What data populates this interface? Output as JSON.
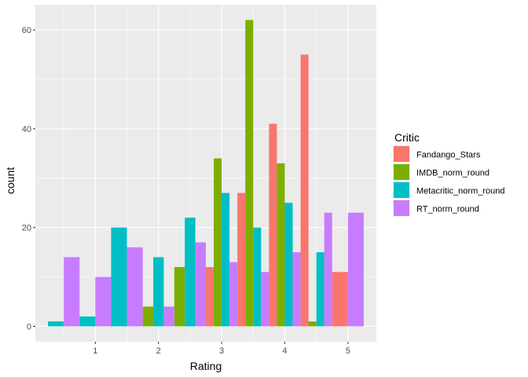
{
  "chart_data": {
    "type": "bar",
    "xlabel": "Rating",
    "ylabel": "count",
    "xlim": [
      0.05,
      5.45
    ],
    "ylim": [
      -3.1,
      65.1
    ],
    "x_ticks": [
      1,
      2,
      3,
      4,
      5
    ],
    "y_ticks": [
      0,
      20,
      40,
      60
    ],
    "bar_width": 0.5,
    "grid": true,
    "legend_position": "right",
    "legend_title": "Critic",
    "series": [
      {
        "name": "Fandango_Stars",
        "color": "#F8766D",
        "points": [
          [
            3.0,
            12
          ],
          [
            3.5,
            27
          ],
          [
            4.0,
            41
          ],
          [
            4.5,
            55
          ],
          [
            5.0,
            11
          ]
        ]
      },
      {
        "name": "IMDB_norm_round",
        "color": "#7CAE00",
        "points": [
          [
            2.0,
            4
          ],
          [
            2.5,
            12
          ],
          [
            3.0,
            34
          ],
          [
            3.5,
            62
          ],
          [
            4.0,
            33
          ],
          [
            4.5,
            1
          ]
        ]
      },
      {
        "name": "Metacritic_norm_round",
        "color": "#00BFC4",
        "points": [
          [
            0.5,
            1
          ],
          [
            1.0,
            2
          ],
          [
            1.5,
            20
          ],
          [
            2.0,
            14
          ],
          [
            2.5,
            22
          ],
          [
            3.0,
            27
          ],
          [
            3.5,
            20
          ],
          [
            4.0,
            25
          ],
          [
            4.5,
            15
          ]
        ]
      },
      {
        "name": "RT_norm_round",
        "color": "#C77CFF",
        "points": [
          [
            0.5,
            14
          ],
          [
            1.0,
            10
          ],
          [
            1.5,
            16
          ],
          [
            2.0,
            4
          ],
          [
            2.5,
            17
          ],
          [
            3.0,
            13
          ],
          [
            3.5,
            11
          ],
          [
            4.0,
            15
          ],
          [
            4.5,
            23
          ],
          [
            5.0,
            23
          ]
        ]
      }
    ]
  }
}
